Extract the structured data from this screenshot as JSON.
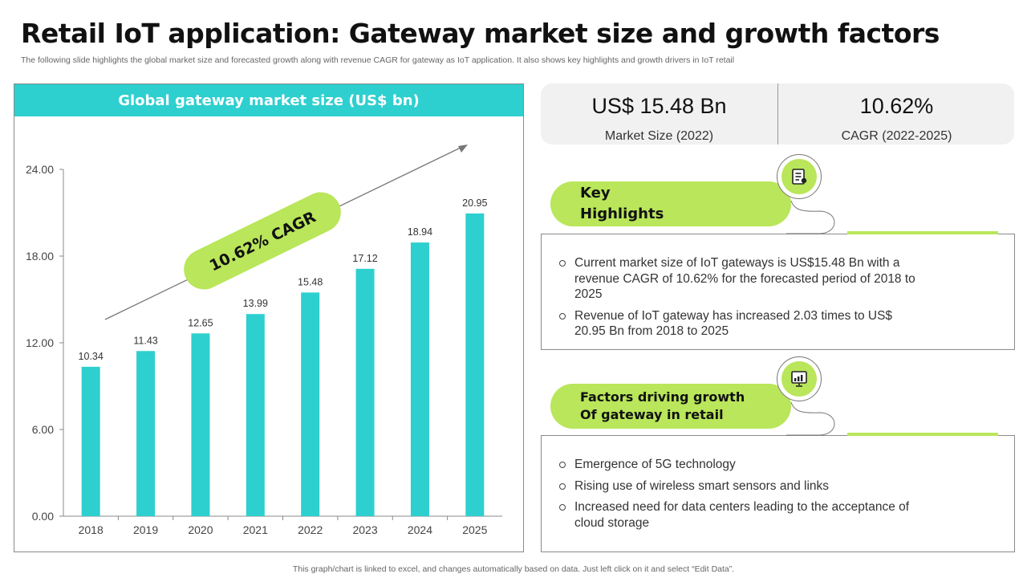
{
  "header": {
    "title": "Retail IoT application: Gateway market size and growth factors",
    "subtitle": "The following slide highlights the global market size and forecasted growth along with revenue CAGR for gateway as IoT application. It also shows key highlights and growth drivers in IoT retail"
  },
  "chart_data": {
    "type": "bar",
    "title": "Global gateway market size (US$ bn)",
    "categories": [
      "2018",
      "2019",
      "2020",
      "2021",
      "2022",
      "2023",
      "2024",
      "2025"
    ],
    "values": [
      10.34,
      11.43,
      12.65,
      13.99,
      15.48,
      17.12,
      18.94,
      20.95
    ],
    "data_labels": [
      "10.34",
      "11.43",
      "12.65",
      "13.99",
      "15.48",
      "17.12",
      "18.94",
      "20.95"
    ],
    "yticks": [
      "0.00",
      "6.00",
      "12.00",
      "18.00",
      "24.00"
    ],
    "ylim": [
      0,
      24
    ],
    "annotation": "10.62% CAGR",
    "bar_color": "#2ecfcf",
    "annotation_color": "#b9e65a",
    "grid": false
  },
  "stats": [
    {
      "value": "US$ 15.48 Bn",
      "label": "Market Size (2022)"
    },
    {
      "value": "10.62%",
      "label": "CAGR (2022-2025)"
    }
  ],
  "highlights": {
    "title_line1": "Key",
    "title_line2": "Highlights",
    "icon": "document-list-icon",
    "bullets": [
      "Current market size of IoT gateways is US$15.48 Bn with a revenue  CAGR of 10.62% for the forecasted period of 2018 to 2025",
      "Revenue  of IoT gateway has increased 2.03 times to US$ 20.95 Bn from 2018 to 2025"
    ]
  },
  "drivers": {
    "title_line1": "Factors driving growth",
    "title_line2": "Of gateway in retail",
    "icon": "growth-chart-icon",
    "bullets": [
      "Emergence of 5G technology",
      "Rising use of wireless smart sensors and links",
      "Increased need for data centers leading to the acceptance of cloud storage"
    ]
  },
  "footer": {
    "note": "This graph/chart is linked to excel,  and changes automatically based on data. Just left click on it and select “Edit Data”."
  },
  "colors": {
    "accent_teal": "#2ecfcf",
    "accent_green": "#b9e65a"
  }
}
